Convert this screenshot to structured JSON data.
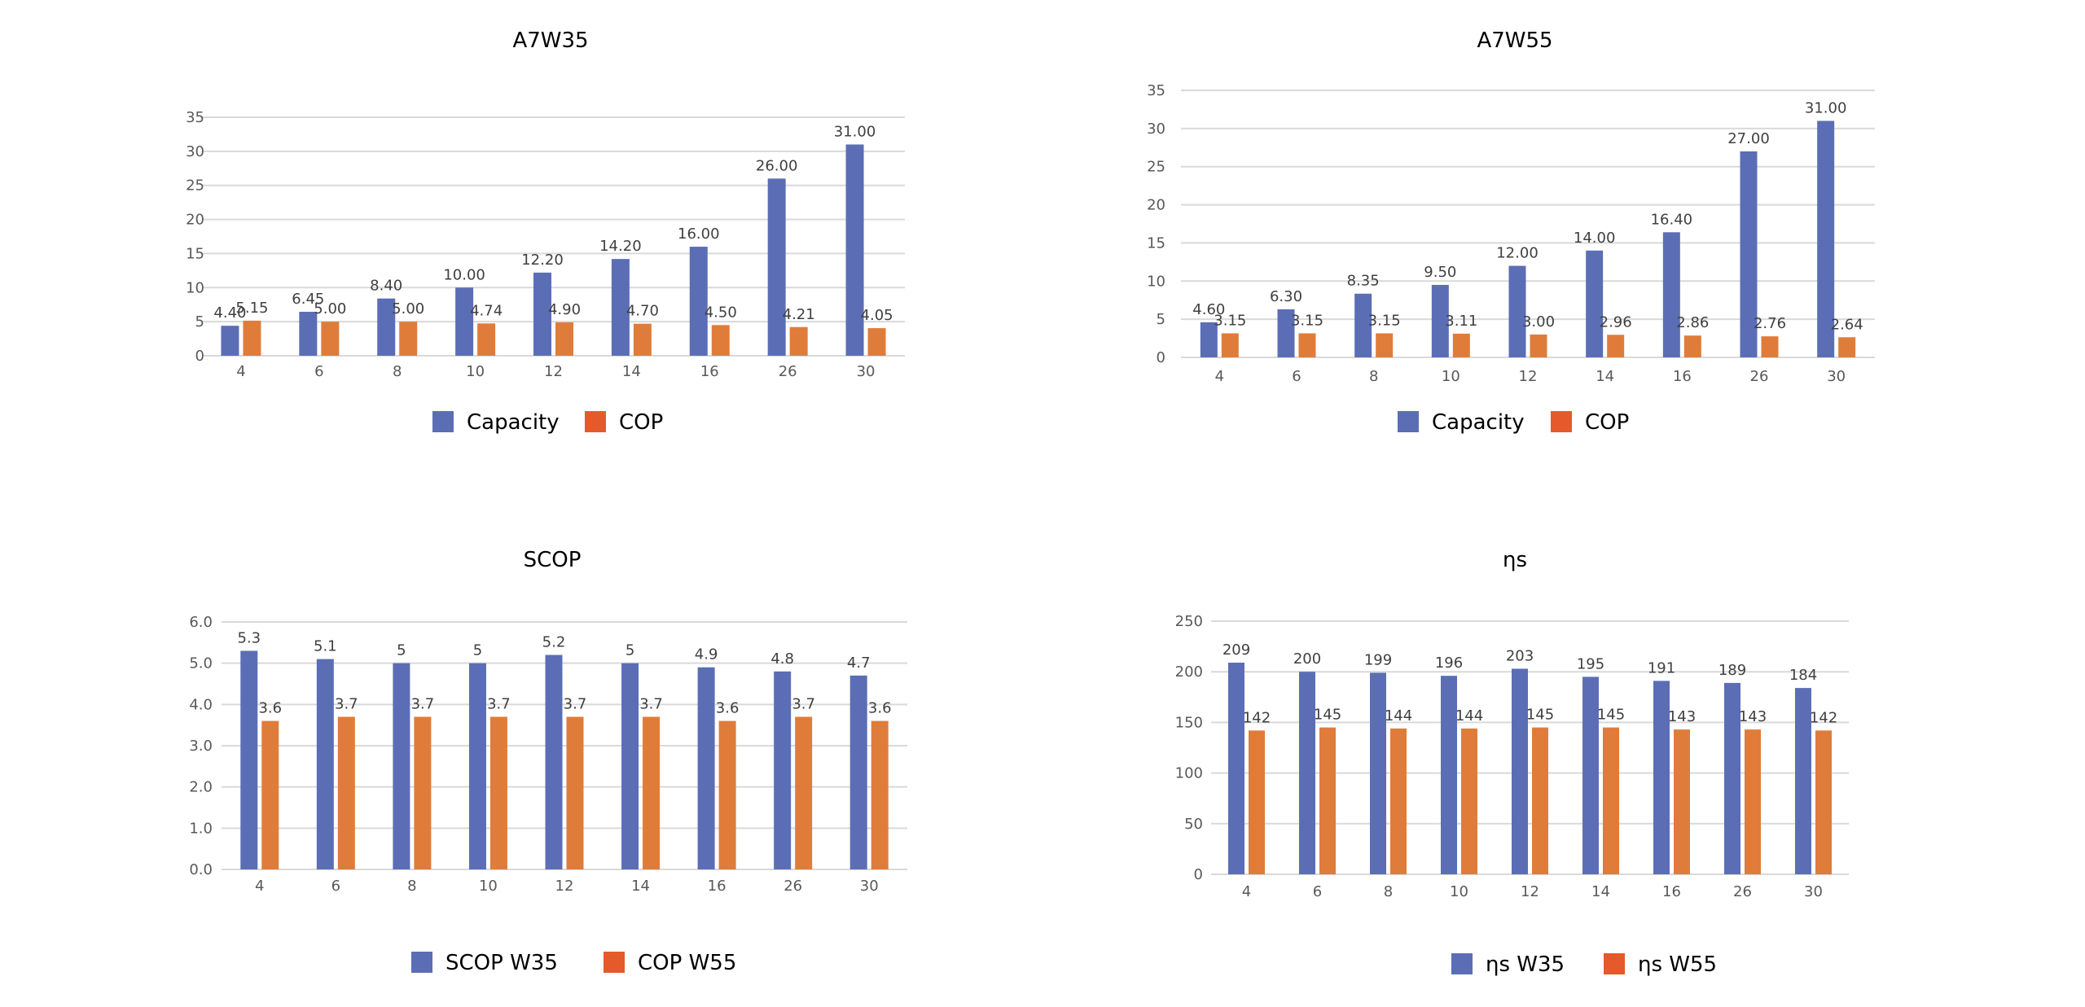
{
  "colors": {
    "series_a": "#5b6eb5",
    "series_b": "#e07c3a",
    "legend_b": "#e45a2a",
    "grid": "#d9d9d9",
    "axis_text": "#595959",
    "label_text": "#404040",
    "title_text": "#000000"
  },
  "chart_data": [
    {
      "type": "bar",
      "title": "A7W35",
      "categories": [
        "4",
        "6",
        "8",
        "10",
        "12",
        "14",
        "16",
        "26",
        "30"
      ],
      "series": [
        {
          "name": "Capacity",
          "values": [
            4.4,
            6.45,
            8.4,
            10.0,
            12.2,
            14.2,
            16.0,
            26.0,
            31.0
          ],
          "labels": [
            "4.40",
            "6.45",
            "8.40",
            "10.00",
            "12.20",
            "14.20",
            "16.00",
            "26.00",
            "31.00"
          ]
        },
        {
          "name": "COP",
          "values": [
            5.15,
            5.0,
            5.0,
            4.74,
            4.9,
            4.7,
            4.5,
            4.21,
            4.05
          ],
          "labels": [
            "5.15",
            "5.00",
            "5.00",
            "4.74",
            "4.90",
            "4.70",
            "4.50",
            "4.21",
            "4.05"
          ]
        }
      ],
      "yticks": [
        "0",
        "5",
        "10",
        "15",
        "20",
        "25",
        "30",
        "35"
      ],
      "ylim": [
        0,
        35
      ],
      "grid": true,
      "legend": "bottom"
    },
    {
      "type": "bar",
      "title": "A7W55",
      "categories": [
        "4",
        "6",
        "8",
        "10",
        "12",
        "14",
        "16",
        "26",
        "30"
      ],
      "series": [
        {
          "name": "Capacity",
          "values": [
            4.6,
            6.3,
            8.35,
            9.5,
            12.0,
            14.0,
            16.4,
            27.0,
            31.0
          ],
          "labels": [
            "4.60",
            "6.30",
            "8.35",
            "9.50",
            "12.00",
            "14.00",
            "16.40",
            "27.00",
            "31.00"
          ]
        },
        {
          "name": "COP",
          "values": [
            3.15,
            3.15,
            3.15,
            3.11,
            3.0,
            2.96,
            2.86,
            2.76,
            2.64
          ],
          "labels": [
            "3.15",
            "3.15",
            "3.15",
            "3.11",
            "3.00",
            "2.96",
            "2.86",
            "2.76",
            "2.64"
          ]
        }
      ],
      "yticks": [
        "0",
        "5",
        "10",
        "15",
        "20",
        "25",
        "30",
        "35"
      ],
      "ylim": [
        0,
        35
      ],
      "grid": true,
      "legend": "bottom"
    },
    {
      "type": "bar",
      "title": "SCOP",
      "categories": [
        "4",
        "6",
        "8",
        "10",
        "12",
        "14",
        "16",
        "26",
        "30"
      ],
      "series": [
        {
          "name": "SCOP W35",
          "values": [
            5.3,
            5.1,
            5,
            5,
            5.2,
            5,
            4.9,
            4.8,
            4.7
          ],
          "labels": [
            "5.3",
            "5.1",
            "5",
            "5",
            "5.2",
            "5",
            "4.9",
            "4.8",
            "4.7"
          ]
        },
        {
          "name": "COP W55",
          "values": [
            3.6,
            3.7,
            3.7,
            3.7,
            3.7,
            3.7,
            3.6,
            3.7,
            3.6
          ],
          "labels": [
            "3.6",
            "3.7",
            "3.7",
            "3.7",
            "3.7",
            "3.7",
            "3.6",
            "3.7",
            "3.6"
          ]
        }
      ],
      "yticks": [
        "0.0",
        "1.0",
        "2.0",
        "3.0",
        "4.0",
        "5.0",
        "6.0"
      ],
      "ylim": [
        0,
        6
      ],
      "grid": true,
      "legend": "bottom"
    },
    {
      "type": "bar",
      "title": "ηs",
      "categories": [
        "4",
        "6",
        "8",
        "10",
        "12",
        "14",
        "16",
        "26",
        "30"
      ],
      "series": [
        {
          "name": "ηs W35",
          "values": [
            209,
            200,
            199,
            196,
            203,
            195,
            191,
            189,
            184
          ],
          "labels": [
            "209",
            "200",
            "199",
            "196",
            "203",
            "195",
            "191",
            "189",
            "184"
          ]
        },
        {
          "name": "ηs W55",
          "values": [
            142,
            145,
            144,
            144,
            145,
            145,
            143,
            143,
            142
          ],
          "labels": [
            "142",
            "145",
            "144",
            "144",
            "145",
            "145",
            "143",
            "143",
            "142"
          ]
        }
      ],
      "yticks": [
        "0",
        "50",
        "100",
        "150",
        "200",
        "250"
      ],
      "ylim": [
        0,
        250
      ],
      "grid": true,
      "legend": "bottom"
    }
  ]
}
